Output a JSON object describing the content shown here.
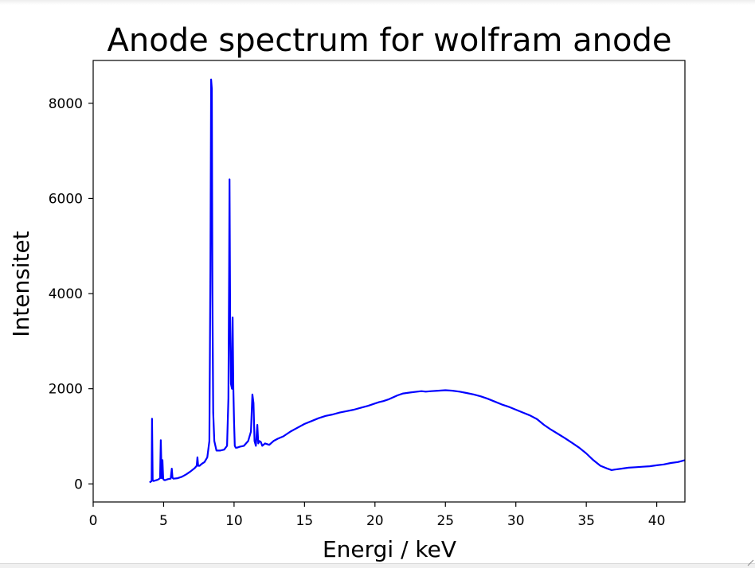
{
  "chart_data": {
    "type": "line",
    "title": "Anode spectrum for wolfram anode",
    "xlabel": "Energi / keV",
    "ylabel": "Intensitet",
    "xlim": [
      0,
      42
    ],
    "ylim": [
      -380,
      8900
    ],
    "xticks": [
      0,
      5,
      10,
      15,
      20,
      25,
      30,
      35,
      40
    ],
    "yticks": [
      0,
      2000,
      4000,
      6000,
      8000
    ],
    "grid": false,
    "series": [
      {
        "color": "#0000ff",
        "x": [
          4.0,
          4.15,
          4.18,
          4.22,
          4.28,
          4.4,
          4.6,
          4.75,
          4.8,
          4.86,
          4.92,
          4.97,
          5.0,
          5.06,
          5.12,
          5.3,
          5.5,
          5.58,
          5.63,
          5.7,
          6.0,
          6.3,
          6.6,
          6.9,
          7.2,
          7.35,
          7.4,
          7.45,
          7.55,
          7.7,
          7.9,
          8.1,
          8.25,
          8.32,
          8.37,
          8.42,
          8.46,
          8.52,
          8.6,
          8.75,
          9.0,
          9.3,
          9.5,
          9.6,
          9.65,
          9.68,
          9.72,
          9.78,
          9.85,
          9.9,
          9.95,
          10.0,
          10.05,
          10.12,
          10.2,
          10.4,
          10.7,
          11.0,
          11.2,
          11.3,
          11.38,
          11.45,
          11.55,
          11.65,
          11.72,
          11.8,
          11.9,
          12.0,
          12.2,
          12.5,
          12.8,
          13.1,
          13.5,
          14.0,
          14.5,
          15.0,
          15.5,
          16.0,
          16.5,
          17.0,
          17.5,
          18.0,
          18.5,
          19.0,
          19.5,
          20.0,
          20.3,
          20.6,
          21.0,
          21.3,
          21.6,
          22.0,
          22.5,
          23.0,
          23.3,
          23.6,
          24.0,
          24.5,
          25.0,
          25.5,
          26.0,
          26.5,
          27.0,
          27.5,
          28.0,
          28.5,
          29.0,
          29.5,
          30.0,
          30.5,
          31.0,
          31.5,
          32.0,
          32.5,
          33.0,
          33.5,
          34.0,
          34.5,
          35.0,
          35.5,
          36.0,
          36.5,
          36.8,
          37.0,
          37.5,
          38.0,
          38.5,
          39.0,
          39.5,
          40.0,
          40.5,
          41.0,
          41.5,
          42.0
        ],
        "y": [
          30,
          60,
          1370,
          80,
          60,
          70,
          90,
          120,
          920,
          120,
          500,
          110,
          90,
          80,
          80,
          100,
          110,
          320,
          130,
          110,
          120,
          150,
          200,
          260,
          330,
          380,
          560,
          380,
          380,
          420,
          460,
          560,
          900,
          4500,
          8500,
          8300,
          4000,
          1500,
          900,
          700,
          700,
          720,
          800,
          1800,
          4500,
          6400,
          3500,
          2100,
          2000,
          3500,
          2000,
          1300,
          800,
          760,
          760,
          780,
          800,
          900,
          1100,
          1880,
          1700,
          900,
          800,
          1240,
          850,
          900,
          880,
          800,
          850,
          820,
          900,
          950,
          1000,
          1100,
          1180,
          1260,
          1320,
          1380,
          1430,
          1460,
          1500,
          1530,
          1560,
          1600,
          1640,
          1690,
          1720,
          1740,
          1780,
          1820,
          1860,
          1900,
          1920,
          1940,
          1950,
          1940,
          1950,
          1960,
          1970,
          1960,
          1940,
          1910,
          1880,
          1840,
          1790,
          1730,
          1670,
          1620,
          1560,
          1500,
          1440,
          1360,
          1240,
          1140,
          1050,
          960,
          860,
          760,
          640,
          500,
          380,
          320,
          290,
          300,
          320,
          340,
          350,
          360,
          370,
          390,
          410,
          440,
          460,
          500
        ]
      }
    ]
  }
}
